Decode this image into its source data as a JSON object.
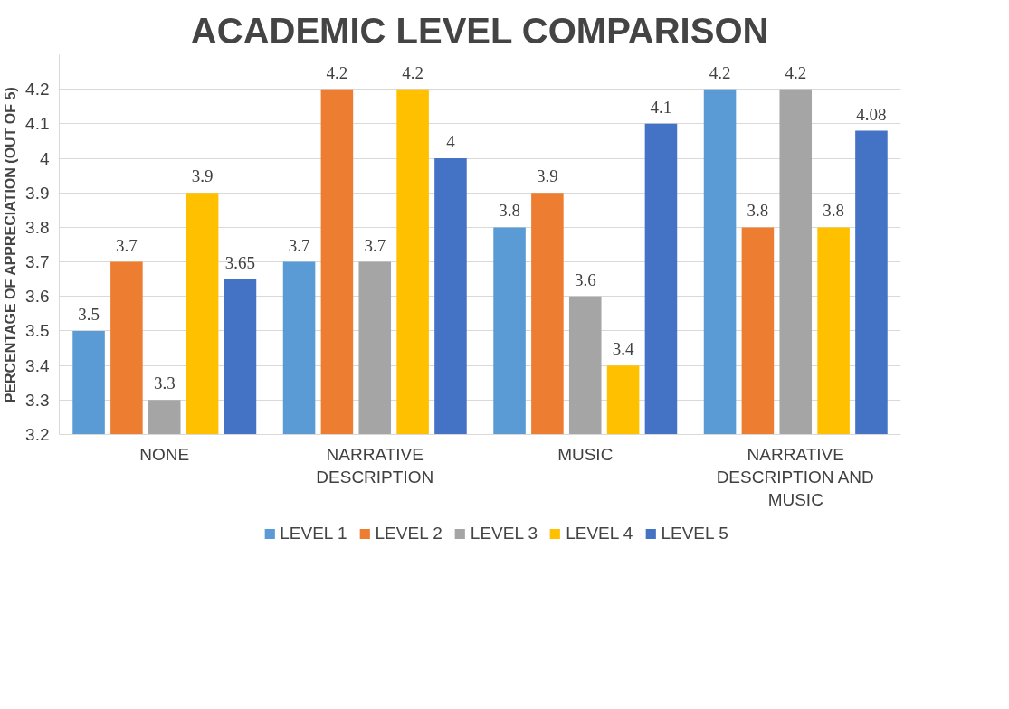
{
  "chart_data": {
    "type": "bar",
    "title": "ACADEMIC LEVEL COMPARISON",
    "ylabel": "PERCENTAGE OF APPRECIATION (OUT OF 5)",
    "categories": [
      "NONE",
      "NARRATIVE DESCRIPTION",
      "MUSIC",
      "NARRATIVE DESCRIPTION AND MUSIC"
    ],
    "series": [
      {
        "name": "LEVEL 1",
        "color": "#5b9bd5",
        "values": [
          3.5,
          3.7,
          3.8,
          4.2
        ],
        "value_labels": [
          "3.5",
          "3.7",
          "3.8",
          "4.2"
        ]
      },
      {
        "name": "LEVEL 2",
        "color": "#ed7d31",
        "values": [
          3.7,
          4.2,
          3.9,
          3.8
        ],
        "value_labels": [
          "3.7",
          "4.2",
          "3.9",
          "3.8"
        ]
      },
      {
        "name": "LEVEL 3",
        "color": "#a5a5a5",
        "values": [
          3.3,
          3.7,
          3.6,
          4.2
        ],
        "value_labels": [
          "3.3",
          "3.7",
          "3.6",
          "4.2"
        ]
      },
      {
        "name": "LEVEL 4",
        "color": "#ffc000",
        "values": [
          3.9,
          4.2,
          3.4,
          3.8
        ],
        "value_labels": [
          "3.9",
          "4.2",
          "3.4",
          "3.8"
        ]
      },
      {
        "name": "LEVEL 5",
        "color": "#4472c4",
        "values": [
          3.65,
          4.0,
          4.1,
          4.08
        ],
        "value_labels": [
          "3.65",
          "4",
          "4.1",
          "4.08"
        ]
      }
    ],
    "ylim": [
      3.2,
      4.3
    ],
    "yticks": [
      3.2,
      3.3,
      3.4,
      3.5,
      3.6,
      3.7,
      3.8,
      3.9,
      4,
      4.1,
      4.2
    ],
    "grid": "y",
    "legend": "bottom"
  }
}
